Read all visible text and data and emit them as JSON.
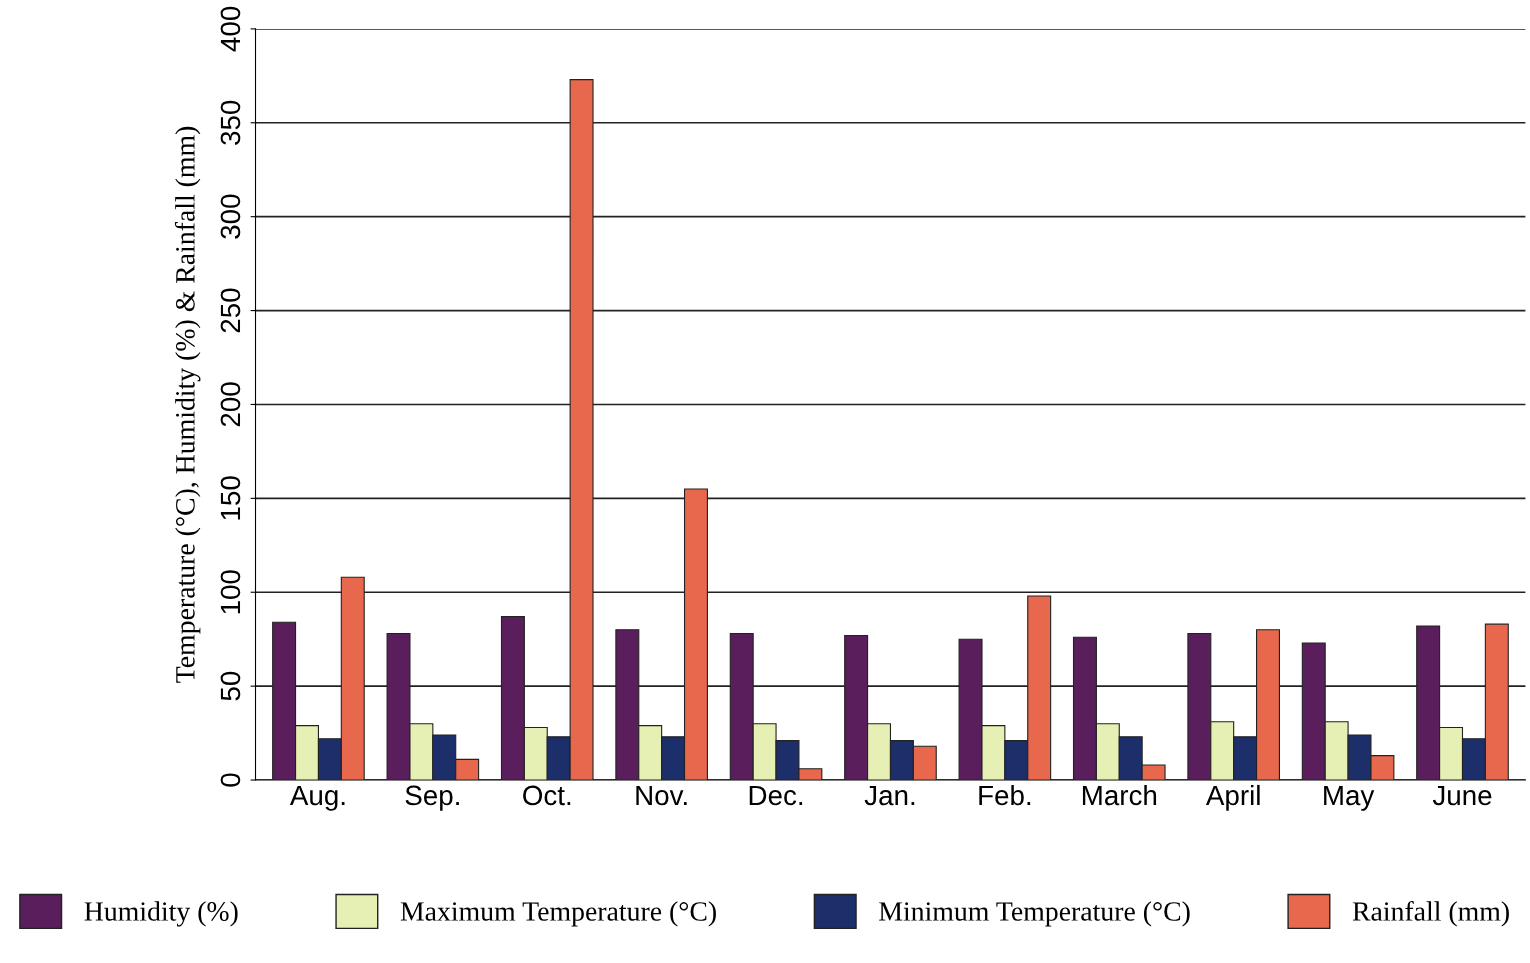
{
  "chart_data": {
    "type": "bar",
    "ylabel": "Temperature (°C), Humidity (%) & Rainfall (mm)",
    "categories": [
      "Aug.",
      "Sep.",
      "Oct.",
      "Nov.",
      "Dec.",
      "Jan.",
      "Feb.",
      "March",
      "April",
      "May",
      "June"
    ],
    "series": [
      {
        "name": "Humidity (%)",
        "color": "#5a1e5c",
        "values": [
          84,
          78,
          87,
          80,
          78,
          77,
          75,
          76,
          78,
          73,
          82
        ]
      },
      {
        "name": "Maximum Temperature (°C)",
        "color": "#e6efb4",
        "values": [
          29,
          30,
          28,
          29,
          30,
          30,
          29,
          30,
          31,
          31,
          28
        ]
      },
      {
        "name": "Minimum Temperature (°C)",
        "color": "#1c2f6b",
        "values": [
          22,
          24,
          23,
          23,
          21,
          21,
          21,
          23,
          23,
          24,
          22
        ]
      },
      {
        "name": "Rainfall (mm)",
        "color": "#e8684e",
        "values": [
          108,
          11,
          373,
          155,
          6,
          18,
          98,
          8,
          80,
          13,
          83
        ]
      }
    ],
    "ylim": [
      0,
      400
    ],
    "yticks": [
      0,
      50,
      100,
      150,
      200,
      250,
      300,
      350,
      400
    ],
    "grid": "y",
    "legend": "bottom"
  }
}
